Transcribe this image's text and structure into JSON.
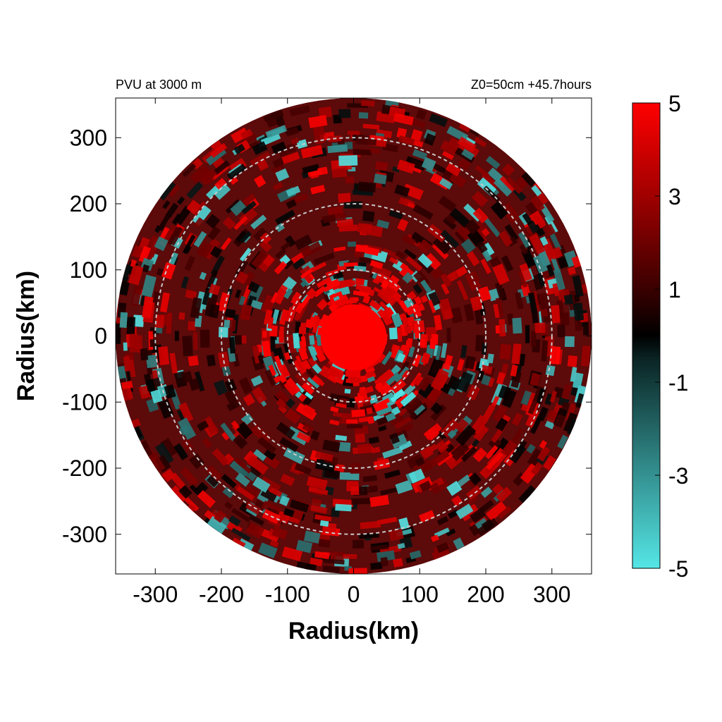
{
  "chart_data": {
    "type": "heatmap",
    "title_left": "PVU at  3000 m",
    "title_right": "Z0=50cm  +45.7hours",
    "xlabel": "Radius(km)",
    "ylabel": "Radius(km)",
    "xlim": [
      -360,
      360
    ],
    "ylim": [
      -360,
      360
    ],
    "x_ticks": [
      -300,
      -200,
      -100,
      0,
      100,
      200,
      300
    ],
    "y_ticks": [
      300,
      200,
      100,
      0,
      -100,
      -200,
      -300
    ],
    "x_tick_labels": [
      "-300",
      "-200",
      "-100",
      "0",
      "100",
      "200",
      "300"
    ],
    "y_tick_labels": [
      "300",
      "200",
      "100",
      "0",
      "-100",
      "-200",
      "-300"
    ],
    "domain_radius_km": 360,
    "range_rings_km": [
      100,
      200,
      300
    ],
    "core_max_region_radius_km": 50,
    "colorbar": {
      "min": -5,
      "max": 5,
      "ticks": [
        5,
        3,
        1,
        -1,
        -3,
        -5
      ],
      "tick_labels": [
        "5",
        "3",
        "1",
        "-1",
        "-3",
        "-5"
      ],
      "colors": {
        "max": "#ff0000",
        "mid": "#000000",
        "min": "#55e6e6"
      }
    },
    "colors": {
      "background_field": "#5c0a0a",
      "ring": "#c8c8c8"
    }
  }
}
